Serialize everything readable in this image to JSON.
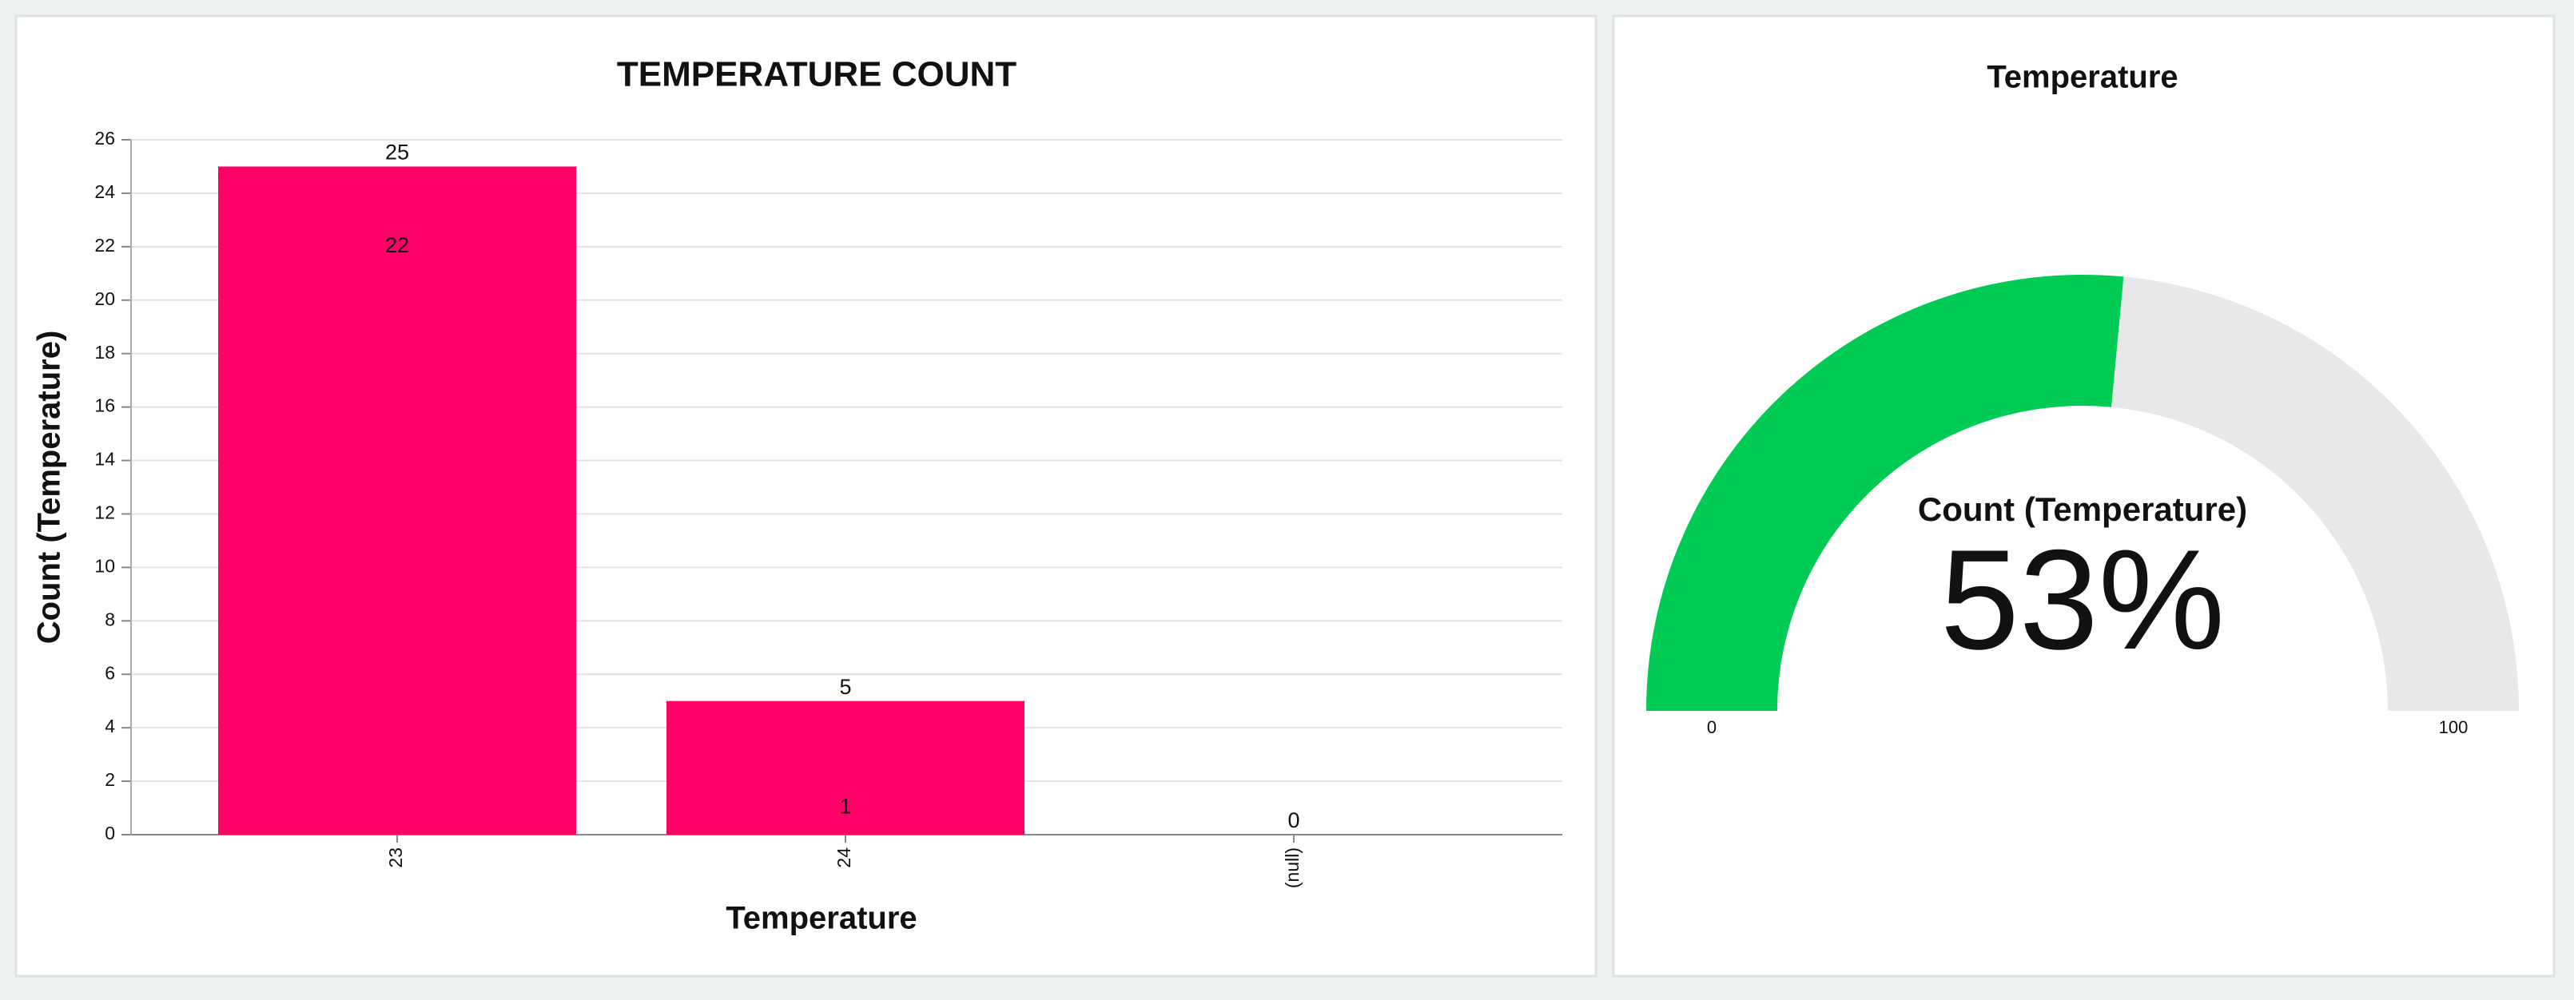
{
  "chart_data": [
    {
      "type": "bar",
      "title": "TEMPERATURE COUNT",
      "x_label": "Temperature",
      "y_label": "Count (Temperature)",
      "categories": [
        "23",
        "24",
        "(null)"
      ],
      "values": [
        25,
        5,
        0
      ],
      "inner_values": [
        22,
        1,
        null
      ],
      "color": "#ff0066",
      "ylim": [
        0,
        26
      ],
      "yticks": [
        0,
        2,
        4,
        6,
        8,
        10,
        12,
        14,
        16,
        18,
        20,
        22,
        24,
        26
      ],
      "grid": true
    },
    {
      "type": "gauge",
      "title": "Temperature",
      "label": "Count (Temperature)",
      "value": 53,
      "value_label": "53%",
      "lim": [
        0,
        100
      ],
      "ticks": [
        0,
        100
      ],
      "color": "#00cc55",
      "track_color": "#e8e8ea"
    }
  ]
}
